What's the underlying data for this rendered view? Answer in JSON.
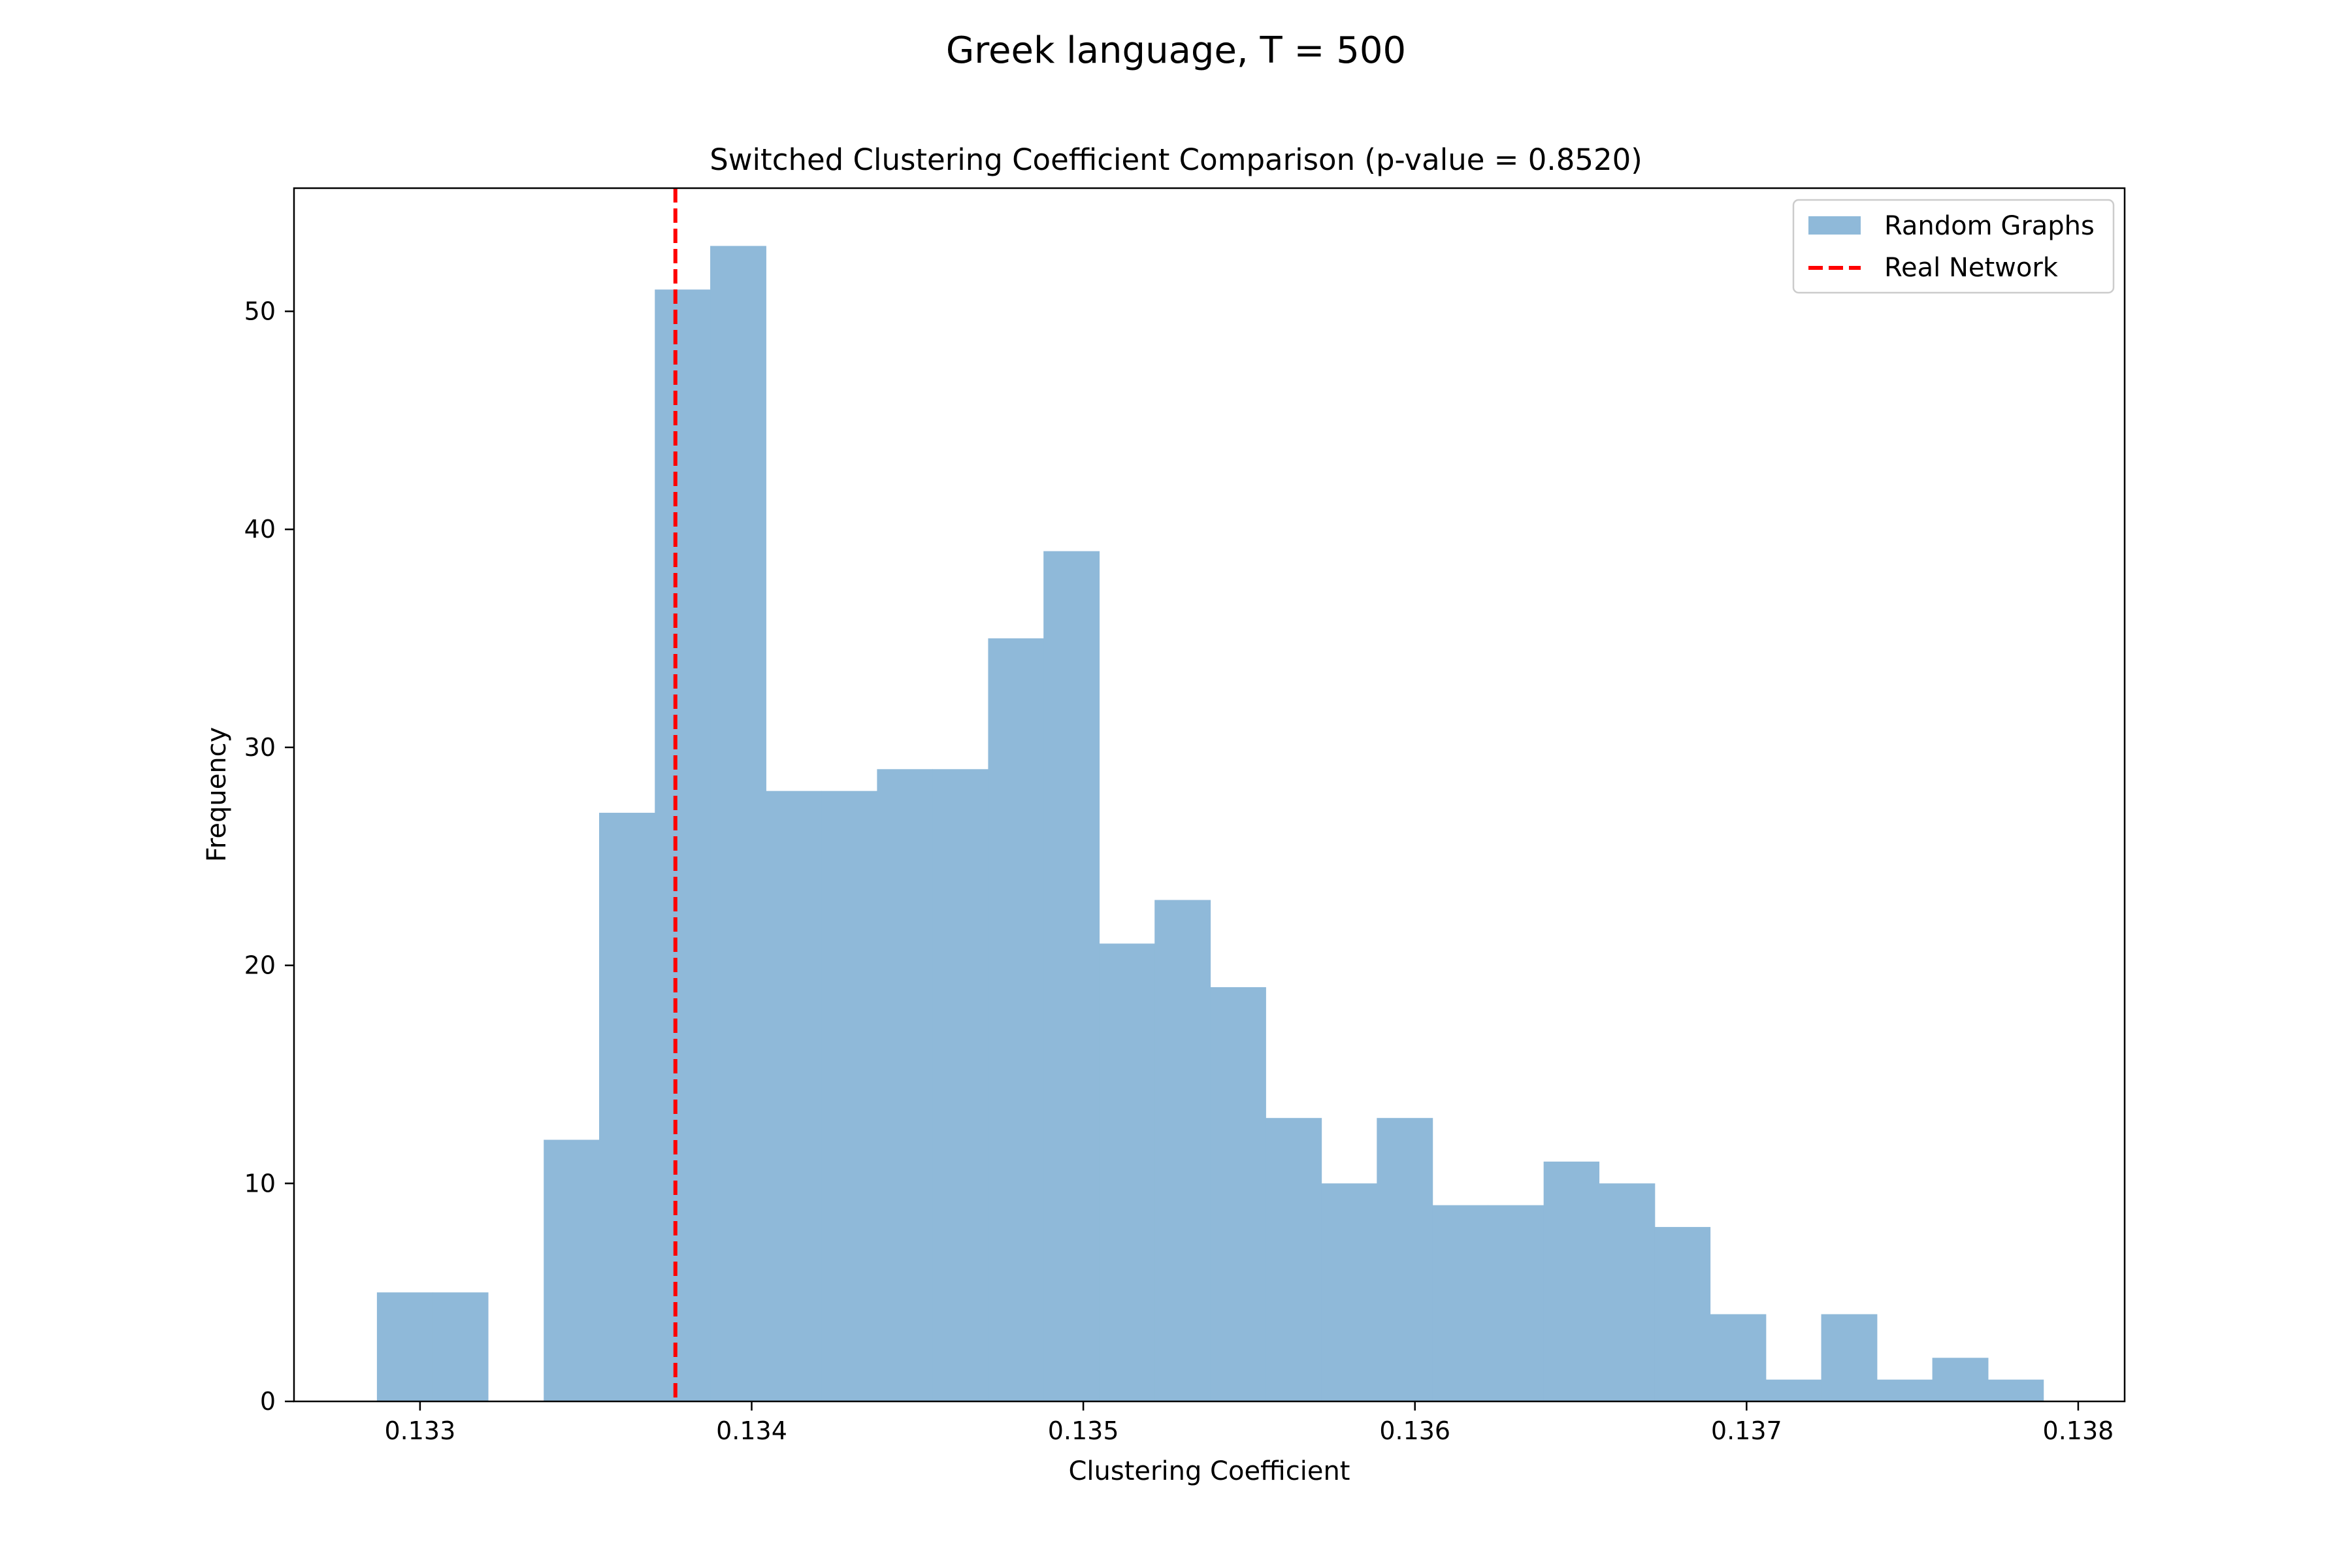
{
  "figure": {
    "suptitle": "Greek language, T = 500"
  },
  "chart_data": {
    "type": "bar",
    "title": "Switched Clustering Coefficient Comparison (p-value = 0.8520)",
    "xlabel": "Clustering Coefficient",
    "ylabel": "Frequency",
    "xlim": [
      0.13262,
      0.13814
    ],
    "ylim": [
      0,
      55.65
    ],
    "xticks": [
      0.133,
      0.134,
      0.135,
      0.136,
      0.137,
      0.138
    ],
    "xtick_labels": [
      "0.133",
      "0.134",
      "0.135",
      "0.136",
      "0.137",
      "0.138"
    ],
    "yticks": [
      0,
      10,
      20,
      30,
      40,
      50
    ],
    "ytick_labels": [
      "0",
      "10",
      "20",
      "30",
      "40",
      "50"
    ],
    "grid": false,
    "legend_position": "top-right",
    "bin_edges": [
      0.13287,
      0.133038,
      0.133205,
      0.133373,
      0.13354,
      0.133708,
      0.133875,
      0.134043,
      0.13421,
      0.134378,
      0.134545,
      0.134713,
      0.13488,
      0.135048,
      0.135215,
      0.135383,
      0.13555,
      0.135718,
      0.135885,
      0.136053,
      0.13622,
      0.136388,
      0.136555,
      0.136723,
      0.13689,
      0.137058,
      0.137225,
      0.137393,
      0.13756,
      0.137728,
      0.137895
    ],
    "series": [
      {
        "name": "Random Graphs",
        "kind": "histogram",
        "color": "#8fb9d9",
        "values": [
          5,
          5,
          0,
          12,
          27,
          51,
          53,
          28,
          28,
          29,
          29,
          35,
          39,
          21,
          23,
          19,
          13,
          10,
          13,
          9,
          9,
          11,
          10,
          8,
          4,
          1,
          4,
          1,
          2,
          1
        ]
      },
      {
        "name": "Real Network",
        "kind": "vline",
        "color": "#ff0000",
        "style": "dashed",
        "x": 0.13377
      }
    ]
  }
}
